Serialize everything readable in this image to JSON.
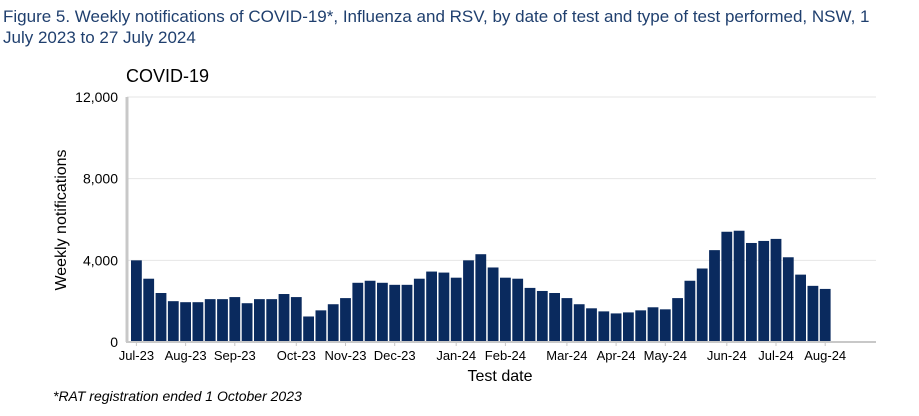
{
  "figure_title": "Figure 5. Weekly notifications of COVID-19*, Influenza and RSV, by date of test and type of test performed, NSW, 1 July 2023 to 27 July 2024",
  "footnote": "*RAT registration ended 1 October 2023",
  "colors": {
    "bar": "#0a2a5e",
    "title": "#1f3f6e",
    "axis": "#c8c8c8",
    "grid": "#e6e6e6"
  },
  "chart_data": {
    "type": "bar",
    "title": "COVID-19",
    "xlabel": "Test date",
    "ylabel": "Weekly notifications",
    "ylim": [
      0,
      12000
    ],
    "yticks": [
      0,
      4000,
      8000,
      12000
    ],
    "ytick_labels": [
      "0",
      "4,000",
      "8,000",
      "12,000"
    ],
    "xtick_labels": [
      "Jul-23",
      "Aug-23",
      "Sep-23",
      "Oct-23",
      "Nov-23",
      "Dec-23",
      "Jan-24",
      "Feb-24",
      "Mar-24",
      "Apr-24",
      "May-24",
      "Jun-24",
      "Jul-24",
      "Aug-24"
    ],
    "xtick_week_index": [
      0,
      4,
      8,
      13,
      17,
      21,
      26,
      30,
      35,
      39,
      43,
      48,
      52,
      56
    ],
    "grid": true,
    "series": [
      {
        "name": "COVID-19",
        "values": [
          4000,
          3100,
          2400,
          2000,
          1950,
          1950,
          2100,
          2100,
          2200,
          1900,
          2100,
          2100,
          2350,
          2200,
          1250,
          1550,
          1850,
          2150,
          2900,
          3000,
          2900,
          2800,
          2800,
          3100,
          3450,
          3400,
          3150,
          4000,
          4300,
          3650,
          3150,
          3100,
          2650,
          2500,
          2400,
          2150,
          1850,
          1650,
          1500,
          1400,
          1450,
          1550,
          1700,
          1600,
          2150,
          3000,
          3600,
          4500,
          5400,
          5450,
          4850,
          4950,
          5050,
          4150,
          3300,
          2750,
          2600
        ]
      }
    ]
  }
}
